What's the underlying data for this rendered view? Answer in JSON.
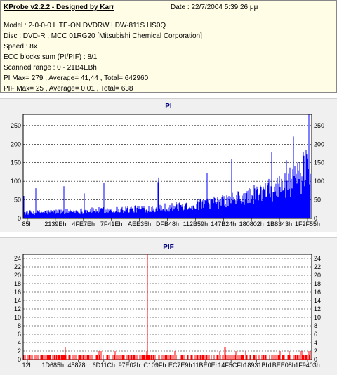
{
  "header": {
    "title": "KProbe v2.2.2 - Designed by Karr",
    "date_label": "Date : 22/7/2004 5:39:26 μμ",
    "model": "Model : 2-0-0-0 LITE-ON DVDRW LDW-811S   HS0Q",
    "disc": "Disc : DVD-R , MCC 01RG20  [Mitsubishi Chemical Corporation]",
    "speed": "Speed : 8x",
    "ecc": "ECC blocks sum (PI/PIF) : 8/1",
    "range": "Scanned range : 0 - 21B4EBh",
    "pi_stats": "PI Max= 279 , Average= 41,44 , Total= 642960",
    "pif_stats": "PIF Max= 25 , Average= 0,01 , Total= 638"
  },
  "chart_data": [
    {
      "type": "bar",
      "title": "PI",
      "ylim": [
        0,
        280
      ],
      "y_ticks": [
        0,
        50,
        100,
        150,
        200,
        250
      ],
      "x_tick_labels": [
        "85h",
        "2139Eh",
        "4FE7Eh",
        "7F41Eh",
        "AEE35h",
        "DFB48h",
        "112B59h",
        "147B24h",
        "180802h",
        "1B8343h",
        "1F2F55h"
      ],
      "color": "#0000ff",
      "grid": true,
      "series": [
        {
          "values_summary": {
            "max": 279,
            "average": 41.44,
            "total": 642960
          }
        }
      ]
    },
    {
      "type": "bar",
      "title": "PIF",
      "ylim": [
        0,
        25
      ],
      "y_ticks": [
        0,
        2,
        4,
        6,
        8,
        10,
        12,
        14,
        16,
        18,
        20,
        22,
        24
      ],
      "x_tick_labels": [
        "12h",
        "1D685h",
        "45878h",
        "6D11Ch",
        "97E02h",
        "C109Fh",
        "EC7E9h",
        "11BE0Eh",
        "14F5CFh",
        "18931Bh",
        "1BEE08h",
        "1F9403h"
      ],
      "color": "#ff0000",
      "grid": true,
      "series": [
        {
          "values_summary": {
            "max": 25,
            "average": 0.01,
            "total": 638
          }
        }
      ]
    }
  ],
  "colors": {
    "info_bg": "#fffde6",
    "panel_bg": "#f0f0f0",
    "plot_bg": "#ffffff",
    "title_color": "#000080"
  }
}
